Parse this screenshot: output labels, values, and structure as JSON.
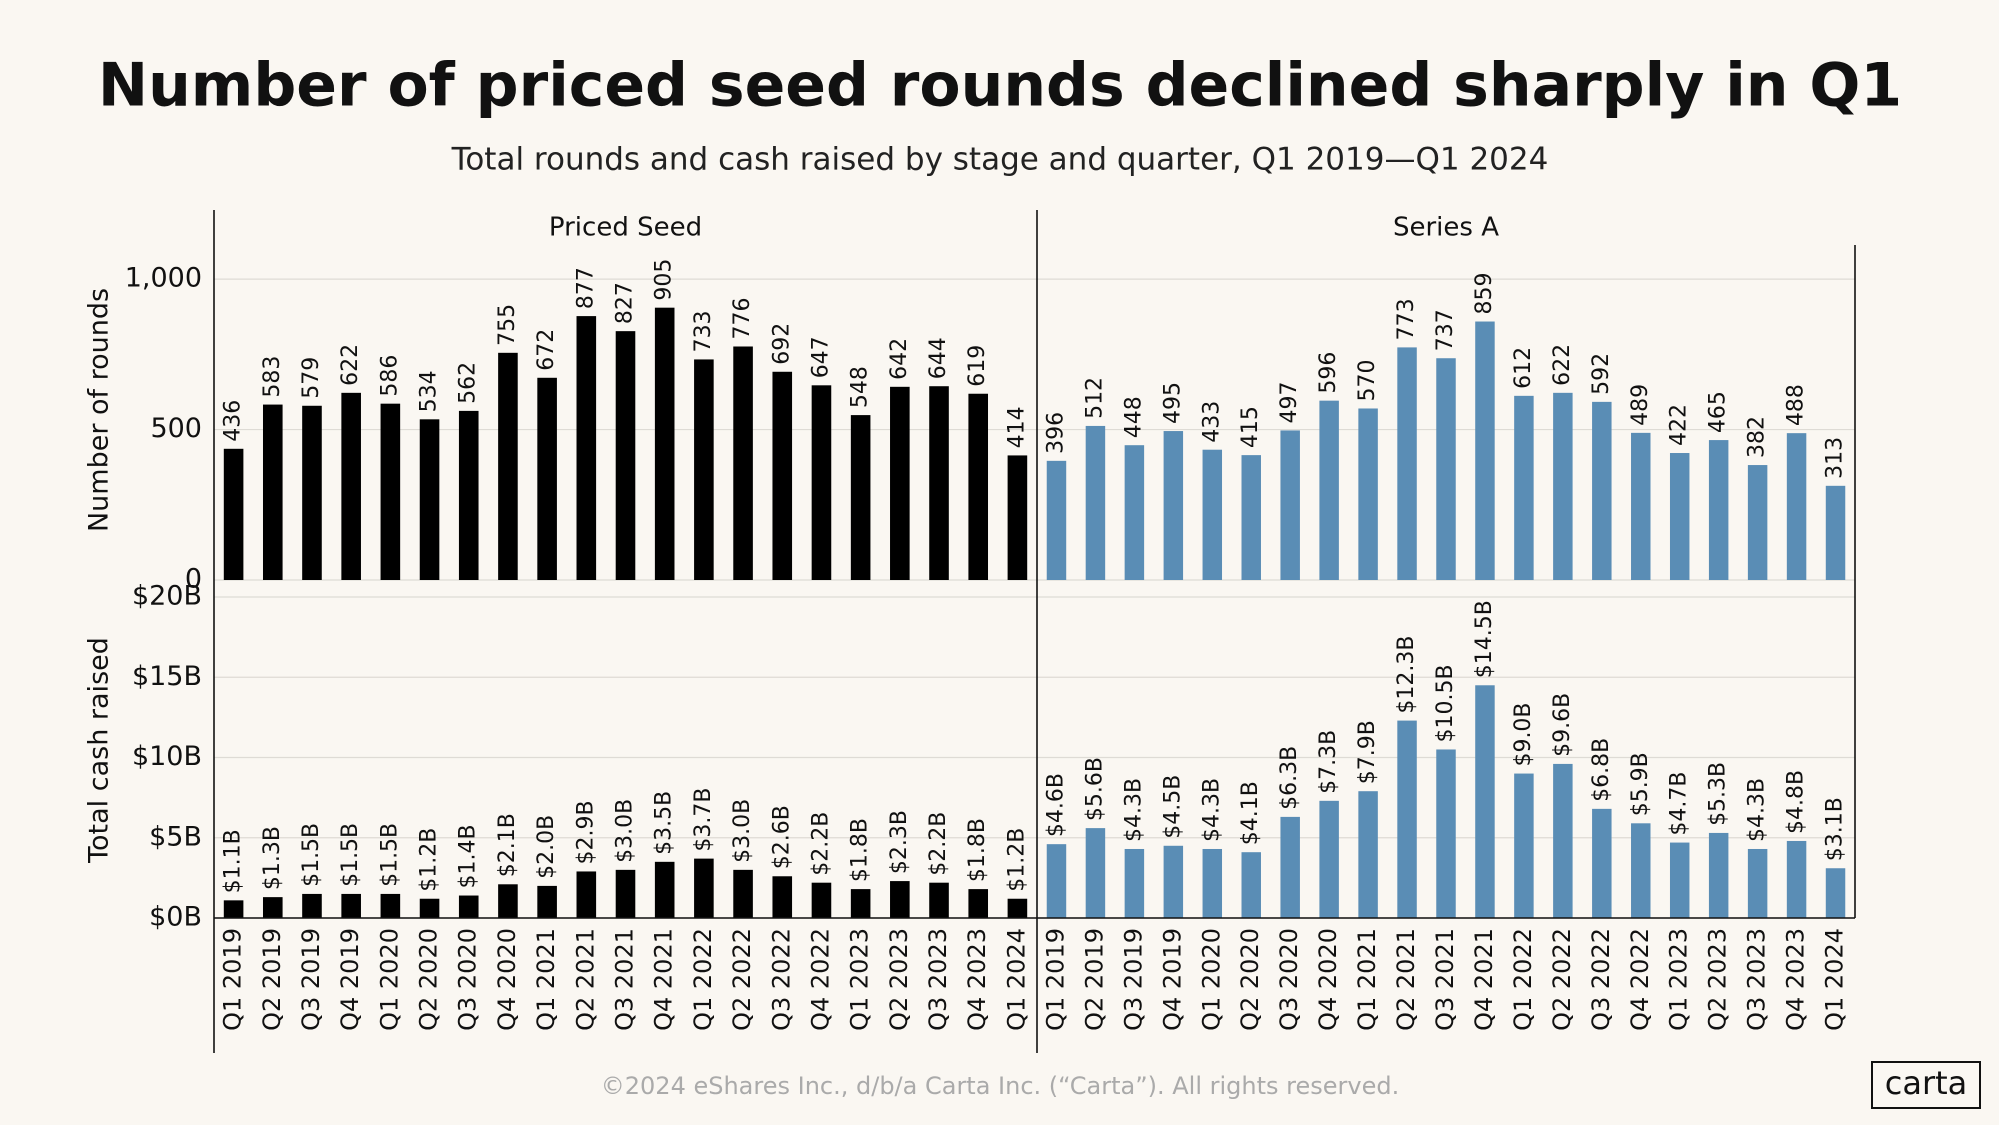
{
  "chart_data": [
    {
      "type": "bar",
      "title": "Number of priced seed rounds declined sharply in Q1",
      "subtitle": "Total rounds and cash raised by stage and quarter, Q1 2019—Q1 2024",
      "ylabel": "Number of rounds",
      "series": [
        {
          "name": "Priced Seed",
          "color": "#000000",
          "values": [
            436,
            583,
            579,
            622,
            586,
            534,
            562,
            755,
            672,
            877,
            827,
            905,
            733,
            776,
            692,
            647,
            548,
            642,
            644,
            619,
            414
          ]
        },
        {
          "name": "Series A",
          "color": "#5a8db5",
          "values": [
            396,
            512,
            448,
            495,
            433,
            415,
            497,
            596,
            570,
            773,
            737,
            859,
            612,
            622,
            592,
            489,
            422,
            465,
            382,
            488,
            313
          ]
        }
      ],
      "ylim": [
        0,
        1100
      ],
      "yticks": [
        0,
        500,
        {
          "value": 1000,
          "label": "1,000"
        }
      ],
      "grid": true
    },
    {
      "type": "bar",
      "ylabel": "Total cash raised",
      "categories": [
        "Q1 2019",
        "Q2 2019",
        "Q3 2019",
        "Q4 2019",
        "Q1 2020",
        "Q2 2020",
        "Q3 2020",
        "Q4 2020",
        "Q1 2021",
        "Q2 2021",
        "Q3 2021",
        "Q4 2021",
        "Q1 2022",
        "Q2 2022",
        "Q3 2022",
        "Q4 2022",
        "Q1 2023",
        "Q2 2023",
        "Q3 2023",
        "Q4 2023",
        "Q1 2024"
      ],
      "series": [
        {
          "color": "#000000",
          "values": [
            1.1,
            1.3,
            1.5,
            1.5,
            1.5,
            1.2,
            1.4,
            2.1,
            2.0,
            2.9,
            3.0,
            3.5,
            3.7,
            3.0,
            2.6,
            2.2,
            1.8,
            2.3,
            2.2,
            1.8,
            1.2
          ],
          "value_labels": [
            "$1.1B",
            "$1.3B",
            "$1.5B",
            "$1.5B",
            "$1.5B",
            "$1.2B",
            "$1.4B",
            "$2.1B",
            "$2.0B",
            "$2.9B",
            "$3.0B",
            "$3.5B",
            "$3.7B",
            "$3.0B",
            "$2.6B",
            "$2.2B",
            "$1.8B",
            "$2.3B",
            "$2.2B",
            "$1.8B",
            "$1.2B"
          ]
        },
        {
          "color": "#5a8db5",
          "values": [
            4.6,
            5.6,
            4.3,
            4.5,
            4.3,
            4.1,
            6.3,
            7.3,
            7.9,
            12.3,
            10.5,
            14.5,
            9.0,
            9.6,
            6.8,
            5.9,
            4.7,
            5.3,
            4.3,
            4.8,
            3.1
          ],
          "value_labels": [
            "$4.6B",
            "$5.6B",
            "$4.3B",
            "$4.5B",
            "$4.3B",
            "$4.1B",
            "$6.3B",
            "$7.3B",
            "$7.9B",
            "$12.3B",
            "$10.5B",
            "$14.5B",
            "$9.0B",
            "$9.6B",
            "$6.8B",
            "$5.9B",
            "$4.7B",
            "$5.3B",
            "$4.3B",
            "$4.8B",
            "$3.1B"
          ]
        }
      ],
      "ylim": [
        0,
        20
      ],
      "yticks": [
        {
          "value": 0,
          "label": "$0B"
        },
        {
          "value": 5,
          "label": "$5B"
        },
        {
          "value": 10,
          "label": "$10B"
        },
        {
          "value": 15,
          "label": "$15B"
        },
        {
          "value": 20,
          "label": "$20B"
        }
      ],
      "grid": true
    }
  ],
  "footer": "©2024 eShares Inc., d/b/a Carta Inc. (“Carta”). All rights reserved.",
  "logo": "carta"
}
